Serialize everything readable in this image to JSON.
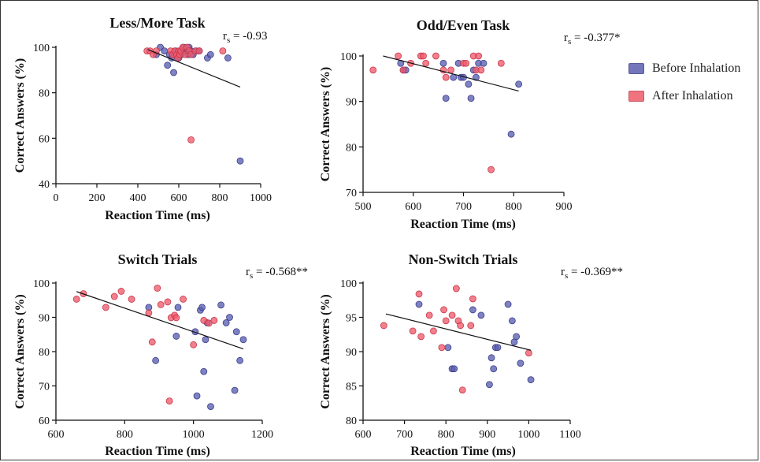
{
  "colors": {
    "before": "#5b5fb0",
    "after": "#ee5b6b",
    "fit": "#111111"
  },
  "legend": {
    "before": "Before Inhalation",
    "after": "After Inhalation"
  },
  "chart_data": [
    {
      "type": "scatter",
      "title": "Less/More Task",
      "stat": "-0.93",
      "xlabel": "Reaction Time (ms)",
      "ylabel": "Correct Answers (%)",
      "xlim": [
        0,
        1000
      ],
      "ylim": [
        40,
        100
      ],
      "xticks": [
        0,
        200,
        400,
        600,
        800,
        1000
      ],
      "yticks": [
        40,
        60,
        80,
        100
      ],
      "fit": [
        [
          450,
          99
        ],
        [
          900,
          82.5
        ]
      ],
      "series": [
        {
          "name": "Before Inhalation",
          "x": [
            490,
            510,
            530,
            545,
            555,
            565,
            575,
            585,
            600,
            610,
            615,
            625,
            635,
            645,
            650,
            660,
            670,
            685,
            700,
            740,
            755,
            840,
            900
          ],
          "y": [
            96.8,
            100,
            98.4,
            92.1,
            96.8,
            95.3,
            88.9,
            98.4,
            95.3,
            96.8,
            98.4,
            100,
            98.4,
            96.8,
            100,
            98.4,
            96.8,
            98.4,
            98.4,
            95.3,
            96.8,
            95.3,
            50
          ]
        },
        {
          "name": "After Inhalation",
          "x": [
            445,
            460,
            475,
            490,
            560,
            570,
            580,
            590,
            595,
            600,
            605,
            610,
            620,
            630,
            640,
            650,
            660,
            680,
            700,
            815,
            660
          ],
          "y": [
            98.4,
            98.4,
            96.8,
            98.4,
            98.4,
            96.8,
            98.4,
            96.8,
            95.3,
            98.4,
            96.8,
            98.4,
            100,
            96.8,
            100,
            98.4,
            96.8,
            98.4,
            98.4,
            98.4,
            59.3
          ]
        }
      ]
    },
    {
      "type": "scatter",
      "title": "Odd/Even Task",
      "stat": "-0.377*",
      "xlabel": "Reaction Time (ms)",
      "ylabel": "Correct Answers (%)",
      "xlim": [
        500,
        900
      ],
      "ylim": [
        70,
        100
      ],
      "xticks": [
        500,
        600,
        700,
        800,
        900
      ],
      "yticks": [
        70,
        80,
        90,
        100
      ],
      "fit": [
        [
          540,
          100
        ],
        [
          810,
          92.3
        ]
      ],
      "series": [
        {
          "name": "Before Inhalation",
          "x": [
            575,
            580,
            585,
            660,
            665,
            680,
            690,
            695,
            700,
            710,
            715,
            720,
            725,
            730,
            740,
            795,
            810
          ],
          "y": [
            98.4,
            96.9,
            96.9,
            98.4,
            90.7,
            95.3,
            98.4,
            95.3,
            95.3,
            93.8,
            90.7,
            96.9,
            95.3,
            98.4,
            98.4,
            82.8,
            93.8
          ]
        },
        {
          "name": "After Inhalation",
          "x": [
            520,
            570,
            580,
            595,
            615,
            620,
            625,
            645,
            660,
            665,
            675,
            700,
            705,
            720,
            725,
            730,
            735,
            755,
            775
          ],
          "y": [
            96.9,
            100,
            96.9,
            98.4,
            100,
            100,
            98.4,
            100,
            96.9,
            95.3,
            96.9,
            98.4,
            98.4,
            100,
            96.9,
            100,
            96.9,
            75,
            98.4
          ]
        }
      ]
    },
    {
      "type": "scatter",
      "title": "Switch Trials",
      "stat": "-0.568**",
      "xlabel": "Reaction Time (ms)",
      "ylabel": "Correct Answers (%)",
      "xlim": [
        600,
        1200
      ],
      "ylim": [
        60,
        100
      ],
      "xticks": [
        600,
        800,
        1000,
        1200
      ],
      "yticks": [
        60,
        70,
        80,
        90,
        100
      ],
      "fit": [
        [
          660,
          97.5
        ],
        [
          1145,
          80.8
        ]
      ],
      "series": [
        {
          "name": "Before Inhalation",
          "x": [
            870,
            890,
            950,
            955,
            1005,
            1010,
            1020,
            1025,
            1030,
            1035,
            1040,
            1050,
            1080,
            1095,
            1105,
            1120,
            1125,
            1135,
            1145
          ],
          "y": [
            92.9,
            77.4,
            84.5,
            92.9,
            85.8,
            67.1,
            92.1,
            92.9,
            74.2,
            83.5,
            88.4,
            64,
            93.6,
            88.4,
            90,
            68.7,
            85.8,
            77.4,
            83.5
          ]
        },
        {
          "name": "After Inhalation",
          "x": [
            660,
            680,
            745,
            770,
            790,
            820,
            870,
            880,
            895,
            905,
            925,
            935,
            945,
            950,
            970,
            1000,
            1030,
            1045,
            1060,
            930
          ],
          "y": [
            95.3,
            96.9,
            92.9,
            96.1,
            97.6,
            95.3,
            91.3,
            82.8,
            98.5,
            93.7,
            94.5,
            89.9,
            90.6,
            89.9,
            95.3,
            82,
            89.1,
            88.3,
            89.1,
            65.6
          ]
        }
      ]
    },
    {
      "type": "scatter",
      "title": "Non-Switch Trials",
      "stat": "-0.369**",
      "xlabel": "Reaction Time (ms)",
      "ylabel": "Correct Answers (%)",
      "xlim": [
        600,
        1100
      ],
      "ylim": [
        80,
        100
      ],
      "xticks": [
        600,
        700,
        800,
        900,
        1000,
        1100
      ],
      "yticks": [
        80,
        85,
        90,
        95,
        100
      ],
      "fit": [
        [
          655,
          95.5
        ],
        [
          1005,
          90.2
        ]
      ],
      "series": [
        {
          "name": "Before Inhalation",
          "x": [
            735,
            805,
            815,
            820,
            865,
            885,
            905,
            910,
            915,
            920,
            925,
            950,
            960,
            965,
            970,
            980,
            1005
          ],
          "y": [
            96.9,
            90.6,
            87.5,
            87.5,
            96.1,
            95.3,
            85.2,
            89.1,
            87.5,
            90.6,
            90.6,
            96.9,
            94.5,
            91.4,
            92.2,
            88.3,
            85.9
          ]
        },
        {
          "name": "After Inhalation",
          "x": [
            650,
            720,
            735,
            740,
            760,
            770,
            790,
            795,
            800,
            815,
            825,
            830,
            835,
            840,
            860,
            865,
            1000
          ],
          "y": [
            93.8,
            93.0,
            98.4,
            92.2,
            95.3,
            93.0,
            90.6,
            96.1,
            94.5,
            95.3,
            99.2,
            94.5,
            93.8,
            84.4,
            93.8,
            97.7,
            89.8
          ]
        }
      ]
    }
  ]
}
